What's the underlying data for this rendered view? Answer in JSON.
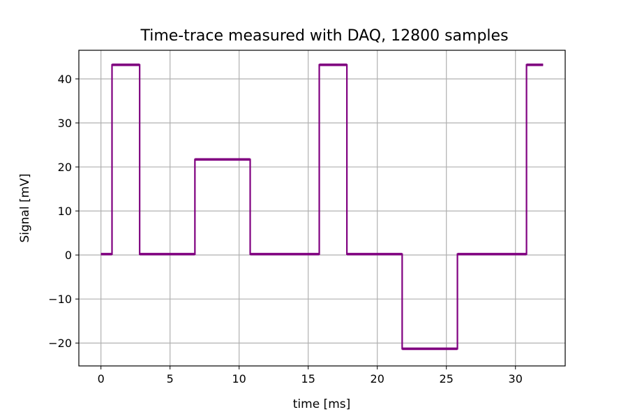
{
  "chart_data": {
    "type": "line",
    "title": "Time-trace measured with DAQ,  12800 samples",
    "xlabel": "time  [ms]",
    "ylabel": "Signal  [mV]",
    "xlim": [
      -1.6,
      33.6
    ],
    "ylim": [
      -25.2,
      46.5
    ],
    "xticks": [
      {
        "value": 0,
        "label": "0"
      },
      {
        "value": 5,
        "label": "5"
      },
      {
        "value": 10,
        "label": "10"
      },
      {
        "value": 15,
        "label": "15"
      },
      {
        "value": 20,
        "label": "20"
      },
      {
        "value": 25,
        "label": "25"
      },
      {
        "value": 30,
        "label": "30"
      }
    ],
    "yticks": [
      {
        "value": -20,
        "label": "−20"
      },
      {
        "value": -10,
        "label": "−10"
      },
      {
        "value": 0,
        "label": "0"
      },
      {
        "value": 10,
        "label": "10"
      },
      {
        "value": 20,
        "label": "20"
      },
      {
        "value": 30,
        "label": "30"
      },
      {
        "value": 40,
        "label": "40"
      }
    ],
    "grid": true,
    "series": [
      {
        "color": "#800080",
        "x": [
          0,
          0.8,
          0.8,
          2.8,
          2.8,
          6.8,
          6.8,
          10.8,
          10.8,
          15.8,
          15.8,
          17.8,
          17.8,
          21.8,
          21.8,
          25.8,
          25.8,
          30.8,
          30.8,
          32.0
        ],
        "y": [
          0.2,
          0.2,
          43.2,
          43.2,
          0.2,
          0.2,
          21.7,
          21.7,
          0.2,
          0.2,
          43.2,
          43.2,
          0.2,
          0.2,
          -21.3,
          -21.3,
          0.2,
          0.2,
          43.2,
          43.2
        ]
      }
    ]
  }
}
